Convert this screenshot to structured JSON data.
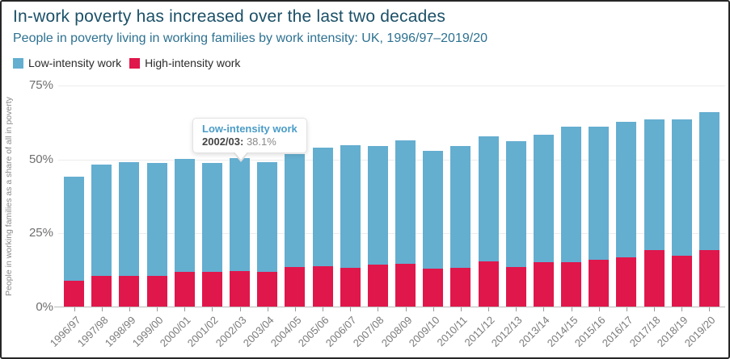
{
  "header": {
    "title": "In-work poverty has increased over the last two decades",
    "subtitle": "People in poverty living in working families by work intensity: UK, 1996/97–2019/20"
  },
  "legend": {
    "items": [
      {
        "label": "Low-intensity work",
        "color": "#64aed0"
      },
      {
        "label": "High-intensity work",
        "color": "#e0174b"
      }
    ]
  },
  "tooltip": {
    "series": "Low-intensity work",
    "category": "2002/03",
    "separator": ":",
    "value": "38.1%"
  },
  "axis": {
    "ylabel": "People in working families as a share of all in poverty",
    "yticks": [
      "0%",
      "25%",
      "50%",
      "75%"
    ],
    "ymax": 75
  },
  "chart_data": {
    "type": "bar",
    "stacked": true,
    "title": "In-work poverty has increased over the last two decades",
    "subtitle": "People in poverty living in working families by work intensity: UK, 1996/97–2019/20",
    "xlabel": "",
    "ylabel": "People in working families as a share of all in poverty",
    "ylim": [
      0,
      75
    ],
    "ytick_format": "percent",
    "grid": true,
    "legend_position": "top-left",
    "categories": [
      "1996/97",
      "1997/98",
      "1998/99",
      "1999/00",
      "2000/01",
      "2001/02",
      "2002/03",
      "2003/04",
      "2004/05",
      "2005/06",
      "2006/07",
      "2007/08",
      "2008/09",
      "2009/10",
      "2010/11",
      "2011/12",
      "2012/13",
      "2013/14",
      "2014/15",
      "2015/16",
      "2016/17",
      "2017/18",
      "2018/19",
      "2019/20"
    ],
    "series": [
      {
        "name": "High-intensity work",
        "color": "#e0174b",
        "values": [
          8.7,
          10.4,
          10.4,
          10.4,
          11.8,
          11.6,
          12.0,
          11.6,
          13.3,
          13.7,
          13.0,
          14.2,
          14.5,
          12.9,
          13.2,
          15.4,
          13.4,
          15.1,
          14.9,
          15.8,
          16.7,
          19.0,
          17.2,
          19.0
        ]
      },
      {
        "name": "Low-intensity work",
        "color": "#64aed0",
        "values": [
          35.2,
          37.7,
          38.5,
          38.1,
          38.2,
          37.0,
          38.1,
          37.1,
          38.2,
          40.0,
          41.5,
          40.2,
          41.6,
          39.8,
          41.1,
          42.1,
          42.5,
          42.9,
          46.0,
          44.9,
          45.8,
          44.4,
          46.2,
          46.8
        ]
      }
    ],
    "annotation": {
      "series": "Low-intensity work",
      "category": "2002/03",
      "value": 38.1
    }
  }
}
